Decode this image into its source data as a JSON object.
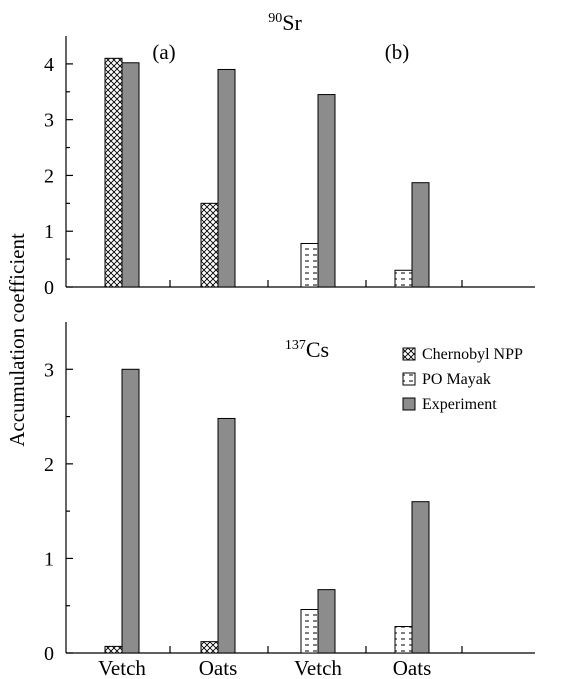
{
  "chart_data": [
    {
      "type": "bar",
      "title_sup": "90",
      "title_main": "Sr",
      "ylabel": "Accumulation coefficient",
      "ylim": [
        0,
        4.5
      ],
      "yticks": [
        "0",
        "1",
        "2",
        "3",
        "4"
      ],
      "sub_labels": [
        "(a)",
        "(b)"
      ],
      "categories": [
        "Vetch",
        "Oats",
        "Vetch",
        "Oats"
      ],
      "series": [
        {
          "name": "Chernobyl NPP",
          "pattern": "crosshatch",
          "values": [
            4.1,
            1.5,
            null,
            null
          ]
        },
        {
          "name": "PO Mayak",
          "pattern": "dashes",
          "values": [
            null,
            null,
            0.78,
            0.3
          ]
        },
        {
          "name": "Experiment",
          "pattern": "solid-gray",
          "values": [
            4.02,
            3.9,
            3.45,
            1.87
          ]
        }
      ]
    },
    {
      "type": "bar",
      "title_sup": "137",
      "title_main": "Cs",
      "ylim": [
        0,
        3.5
      ],
      "yticks": [
        "0",
        "1",
        "2",
        "3"
      ],
      "categories": [
        "Vetch",
        "Oats",
        "Vetch",
        "Oats"
      ],
      "legend_position": "top-right",
      "series": [
        {
          "name": "Chernobyl NPP",
          "pattern": "crosshatch",
          "values": [
            0.07,
            0.12,
            null,
            null
          ]
        },
        {
          "name": "PO Mayak",
          "pattern": "dashes",
          "values": [
            null,
            null,
            0.46,
            0.28
          ]
        },
        {
          "name": "Experiment",
          "pattern": "solid-gray",
          "values": [
            3.0,
            2.48,
            0.67,
            1.6
          ]
        }
      ]
    }
  ],
  "colors": {
    "experiment": "#8c8c8c",
    "axis": "#000000",
    "background": "#ffffff"
  }
}
